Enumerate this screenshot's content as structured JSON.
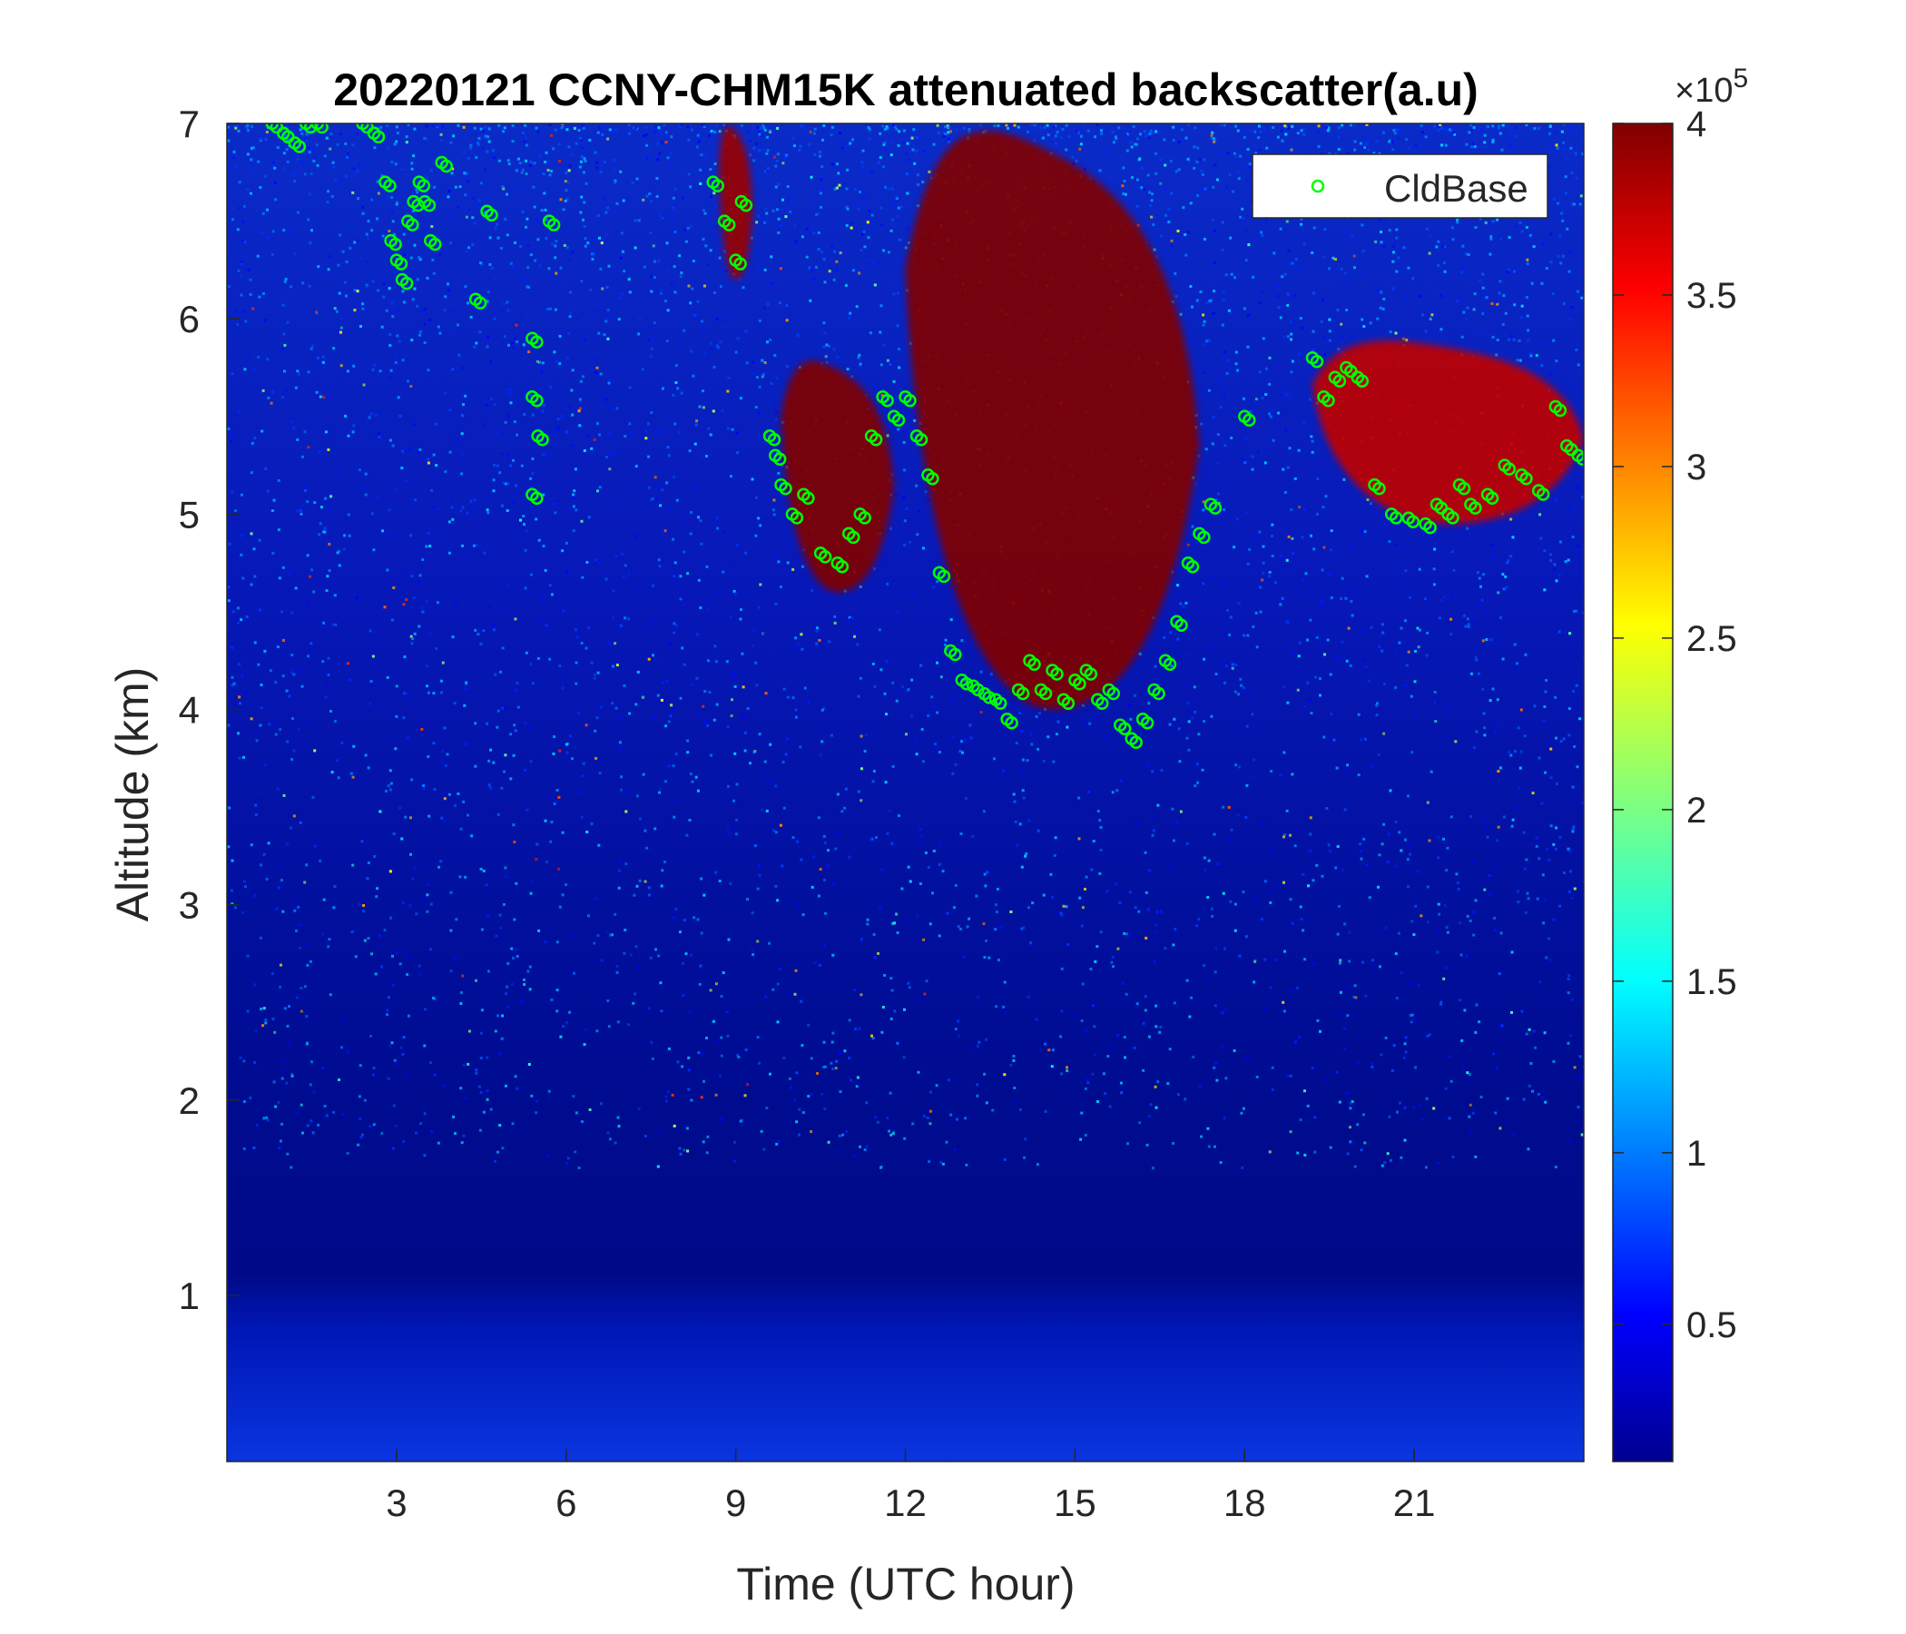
{
  "chart_data": {
    "type": "heatmap",
    "title": "20220121 CCNY-CHM15K attenuated backscatter(a.u)",
    "xlabel": "Time (UTC hour)",
    "ylabel": "Altitude (km)",
    "xlim": [
      0,
      24
    ],
    "ylim": [
      0.15,
      7
    ],
    "xticks": [
      3,
      6,
      9,
      12,
      15,
      18,
      21
    ],
    "yticks": [
      1,
      2,
      3,
      4,
      5,
      6,
      7
    ],
    "colorbar": {
      "colormap": "jet",
      "clim": [
        0.1,
        4
      ],
      "ticks": [
        0.5,
        1,
        1.5,
        2,
        2.5,
        3,
        3.5,
        4
      ],
      "exponent_label": "×10",
      "exponent": "5"
    },
    "legend": {
      "position": "top-right",
      "entries": [
        "CldBase"
      ]
    },
    "colors": {
      "cloud_base_marker": "#00ff00",
      "cloud": "#800000",
      "background": "#000fa0"
    },
    "series": [
      {
        "name": "CldBase",
        "kind": "scatter-open-circles",
        "x": [
          0.8,
          1.0,
          1.2,
          1.4,
          1.6,
          2.4,
          2.6,
          2.8,
          2.9,
          3.0,
          3.1,
          3.2,
          3.3,
          3.4,
          3.5,
          3.6,
          3.8,
          4.4,
          4.6,
          5.4,
          5.4,
          5.4,
          5.5,
          5.7,
          8.6,
          8.8,
          9.0,
          9.1,
          9.6,
          9.7,
          9.8,
          10.0,
          10.2,
          10.5,
          10.8,
          11.0,
          11.2,
          11.4,
          11.6,
          11.8,
          12.0,
          12.2,
          12.4,
          12.6,
          12.8,
          13.0,
          13.2,
          13.4,
          13.6,
          13.8,
          14.0,
          14.2,
          14.4,
          14.6,
          14.8,
          15.0,
          15.2,
          15.4,
          15.6,
          15.8,
          16.0,
          16.2,
          16.4,
          16.6,
          16.8,
          17.0,
          17.2,
          17.4,
          18.0,
          19.2,
          19.4,
          19.6,
          19.8,
          20.0,
          20.3,
          20.6,
          20.9,
          21.2,
          21.4,
          21.6,
          21.8,
          22.0,
          22.3,
          22.6,
          22.9,
          23.2,
          23.5,
          23.7,
          23.9
        ],
        "y": [
          7.0,
          6.95,
          6.9,
          7.0,
          7.0,
          7.0,
          6.95,
          6.7,
          6.4,
          6.3,
          6.2,
          6.5,
          6.6,
          6.7,
          6.6,
          6.4,
          6.8,
          6.1,
          6.55,
          5.9,
          5.6,
          5.1,
          5.4,
          6.5,
          6.7,
          6.5,
          6.3,
          6.6,
          5.4,
          5.3,
          5.15,
          5.0,
          5.1,
          4.8,
          4.75,
          4.9,
          5.0,
          5.4,
          5.6,
          5.5,
          5.6,
          5.4,
          5.2,
          4.7,
          4.3,
          4.15,
          4.12,
          4.08,
          4.05,
          3.95,
          4.1,
          4.25,
          4.1,
          4.2,
          4.05,
          4.15,
          4.2,
          4.05,
          4.1,
          3.92,
          3.85,
          3.95,
          4.1,
          4.25,
          4.45,
          4.75,
          4.9,
          5.05,
          5.5,
          5.8,
          5.6,
          5.7,
          5.75,
          5.7,
          5.15,
          5.0,
          4.98,
          4.95,
          5.05,
          5.0,
          5.15,
          5.05,
          5.1,
          5.25,
          5.2,
          5.12,
          5.55,
          5.35,
          5.3
        ]
      }
    ],
    "cloud_regions": [
      {
        "t_start": 12.0,
        "t_end": 17.2,
        "base_km": 4.0,
        "top_km": 7.0,
        "value": 4.0
      },
      {
        "t_start": 9.8,
        "t_end": 11.8,
        "base_km": 4.6,
        "top_km": 5.8,
        "value": 4.0
      },
      {
        "t_start": 8.7,
        "t_end": 9.3,
        "base_km": 6.2,
        "top_km": 7.0,
        "value": 3.8
      },
      {
        "t_start": 19.2,
        "t_end": 24.0,
        "base_km": 4.95,
        "top_km": 5.9,
        "value": 3.5
      }
    ]
  }
}
